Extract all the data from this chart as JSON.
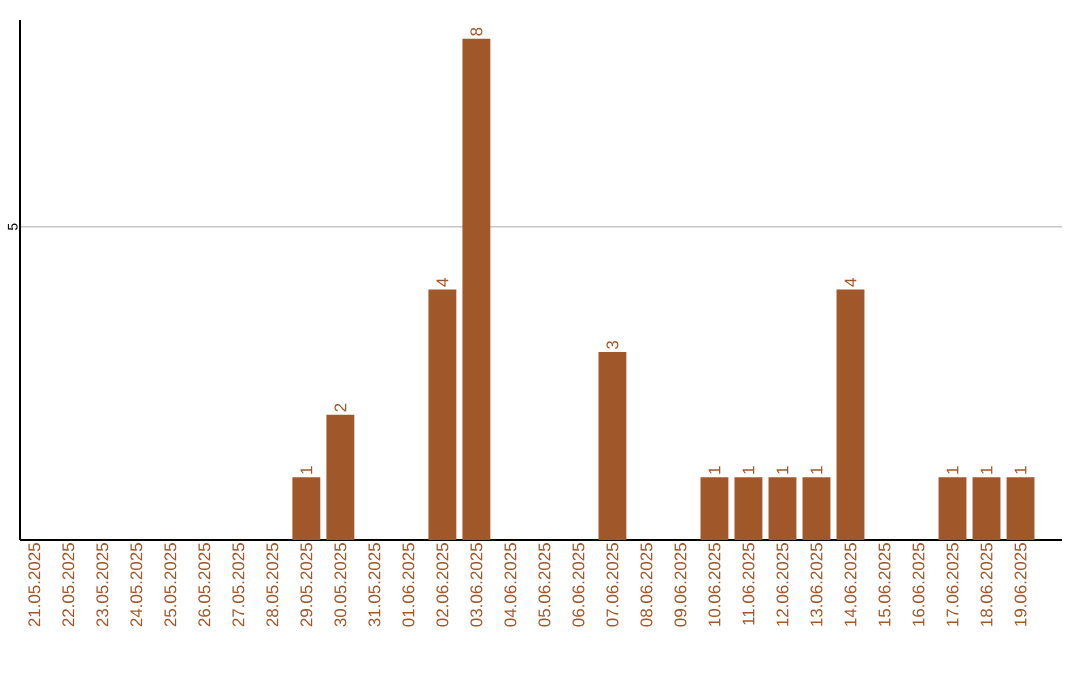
{
  "chart_data": {
    "type": "bar",
    "categories": [
      "21.05.2025",
      "22.05.2025",
      "23.05.2025",
      "24.05.2025",
      "25.05.2025",
      "26.05.2025",
      "27.05.2025",
      "28.05.2025",
      "29.05.2025",
      "30.05.2025",
      "31.05.2025",
      "01.06.2025",
      "02.06.2025",
      "03.06.2025",
      "04.06.2025",
      "05.06.2025",
      "06.06.2025",
      "07.06.2025",
      "08.06.2025",
      "09.06.2025",
      "10.06.2025",
      "11.06.2025",
      "12.06.2025",
      "13.06.2025",
      "14.06.2025",
      "15.06.2025",
      "16.06.2025",
      "17.06.2025",
      "18.06.2025",
      "19.06.2025"
    ],
    "values": [
      0,
      0,
      0,
      0,
      0,
      0,
      0,
      0,
      1,
      2,
      0,
      0,
      4,
      8,
      0,
      0,
      0,
      3,
      0,
      0,
      1,
      1,
      1,
      1,
      4,
      0,
      0,
      1,
      1,
      1
    ],
    "value_labels": [
      null,
      null,
      null,
      null,
      null,
      null,
      null,
      null,
      "1",
      "2",
      null,
      null,
      "4",
      "8",
      null,
      null,
      null,
      "3",
      null,
      null,
      "1",
      "1",
      "1",
      "1",
      "4",
      null,
      null,
      "1",
      "1",
      "1"
    ],
    "color": "#a0572a",
    "ylim": [
      0,
      8.3
    ],
    "yticks": [
      5
    ],
    "grid": "y"
  }
}
